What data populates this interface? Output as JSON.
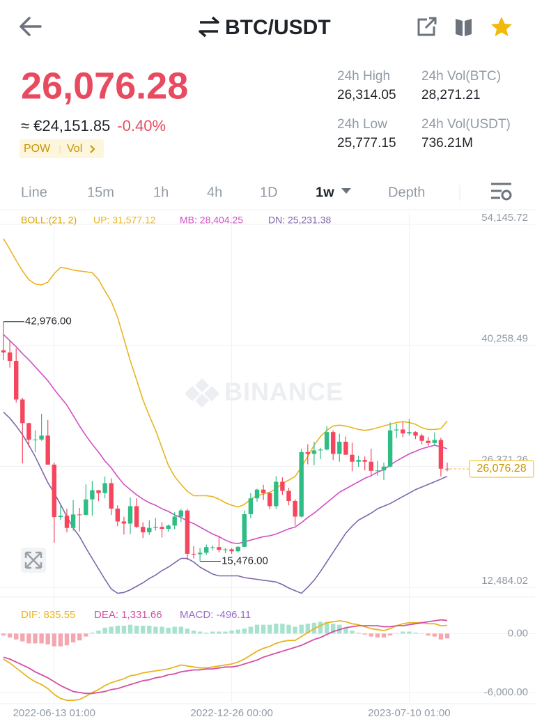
{
  "header": {
    "title": "BTC/USDT"
  },
  "ticker": {
    "price": "26,076.28",
    "fiat": "≈ €24,151.85",
    "change": "-0.40%",
    "tags": [
      "POW",
      "Vol"
    ]
  },
  "stats": [
    {
      "label": "24h High",
      "value": "26,314.05"
    },
    {
      "label": "24h Vol(BTC)",
      "value": "28,271.21"
    },
    {
      "label": "24h Low",
      "value": "25,777.15"
    },
    {
      "label": "24h Vol(USDT)",
      "value": "736.21M"
    }
  ],
  "tabs": [
    "Line",
    "15m",
    "1h",
    "4h",
    "1D",
    "1w",
    "Depth"
  ],
  "chart_data": [
    {
      "type": "candlestick",
      "indicator": "BOLL:(21, 2)",
      "watermark": "BINANCE",
      "grid": true,
      "up_color": "#2ebd85",
      "down_color": "#f6465d",
      "categories": [
        null,
        null,
        null,
        null,
        null,
        null,
        null,
        null,
        "2022-06-13 01:00",
        null,
        null,
        null,
        null,
        null,
        null,
        null,
        null,
        null,
        null,
        null,
        null,
        null,
        null,
        null,
        null,
        null,
        null,
        null,
        null,
        null,
        null,
        null,
        null,
        null,
        null,
        null,
        "2022-12-26 00:00",
        null,
        null,
        null,
        null,
        null,
        null,
        null,
        null,
        null,
        null,
        null,
        null,
        null,
        null,
        null,
        null,
        null,
        null,
        null,
        null,
        null,
        null,
        null,
        null,
        null,
        null,
        null,
        "2023-07-10 01:00",
        null,
        null,
        null,
        null,
        null,
        null
      ],
      "open": [
        39700,
        39450,
        38470,
        34040,
        31330,
        29430,
        29450,
        29900,
        26570,
        20550,
        20700,
        19300,
        20850,
        20800,
        22580,
        23630,
        23300,
        24440,
        21520,
        20040,
        19800,
        21800,
        19420,
        18800,
        19310,
        19420,
        19200,
        19570,
        20600,
        21300,
        16330,
        16280,
        16450,
        17100,
        17100,
        16780,
        16840,
        16620,
        17130,
        20880,
        22700,
        23700,
        23300,
        21800,
        24600,
        23550,
        22400,
        20600,
        28000,
        27800,
        28200,
        28300,
        30300,
        27800,
        29200,
        27700,
        26900,
        27100,
        26900,
        25850,
        25900,
        26340,
        30500,
        30600,
        30150,
        30300,
        29900,
        29300,
        29050,
        29400,
        26100
      ],
      "high": [
        42976,
        40800,
        39900,
        34240,
        31400,
        30500,
        32400,
        31700,
        26800,
        21900,
        21500,
        22500,
        21600,
        24300,
        24700,
        23650,
        25200,
        25000,
        21900,
        20580,
        22800,
        22700,
        19950,
        20200,
        20450,
        19950,
        19700,
        21100,
        21480,
        21470,
        17200,
        17000,
        17400,
        17300,
        18400,
        17000,
        16970,
        17200,
        21300,
        23300,
        23800,
        24250,
        23450,
        25250,
        25100,
        23900,
        22600,
        28400,
        28900,
        29200,
        28500,
        31000,
        30500,
        30100,
        29800,
        29100,
        27600,
        27500,
        28400,
        27000,
        26800,
        31400,
        31300,
        31500,
        31800,
        30400,
        30100,
        29750,
        30250,
        29650,
        26800
      ],
      "low": [
        38550,
        37700,
        33700,
        26700,
        28600,
        28000,
        29300,
        26560,
        17600,
        20200,
        18800,
        19000,
        18900,
        20750,
        20700,
        22400,
        22700,
        20800,
        19500,
        18550,
        18600,
        19300,
        18150,
        18500,
        19000,
        18200,
        18900,
        19150,
        20000,
        15600,
        15800,
        15476,
        16200,
        16730,
        16500,
        16400,
        16330,
        16500,
        17100,
        20400,
        22300,
        22500,
        21450,
        21500,
        23100,
        21900,
        19550,
        20500,
        26600,
        26500,
        27200,
        28200,
        27100,
        26900,
        27700,
        25800,
        26300,
        25900,
        25400,
        25300,
        24800,
        26250,
        29600,
        29700,
        29900,
        29500,
        28900,
        28700,
        28750,
        25200,
        25800
      ],
      "close": [
        39450,
        38470,
        34040,
        31330,
        29430,
        29450,
        29900,
        26570,
        20550,
        20700,
        19300,
        20850,
        20800,
        22580,
        23630,
        23300,
        24440,
        21520,
        20040,
        19800,
        21800,
        19420,
        18800,
        19310,
        19420,
        19200,
        19570,
        20600,
        21300,
        16330,
        16280,
        16450,
        17100,
        17100,
        16780,
        16840,
        16620,
        17130,
        20880,
        22700,
        23700,
        23300,
        21800,
        24600,
        23550,
        22400,
        20600,
        28000,
        27800,
        28200,
        28300,
        30300,
        27800,
        29200,
        27700,
        26900,
        27100,
        26900,
        25850,
        25900,
        26340,
        30500,
        30600,
        30150,
        30300,
        29900,
        29300,
        29050,
        29400,
        26100,
        26076.28
      ],
      "series": [
        {
          "name": "UP: 31,577.12",
          "color": "#e8b520",
          "values": [
            52500,
            51300,
            50000,
            48800,
            47800,
            47300,
            47200,
            47500,
            48500,
            49200,
            49100,
            48900,
            48800,
            48700,
            48600,
            47800,
            46500,
            45300,
            43500,
            41000,
            38500,
            36300,
            34000,
            32200,
            30500,
            28500,
            26500,
            25200,
            24300,
            23500,
            23000,
            23000,
            23000,
            22900,
            22600,
            22200,
            21900,
            21700,
            22000,
            22600,
            23000,
            23200,
            23400,
            23800,
            24400,
            24800,
            25200,
            26300,
            27500,
            28800,
            29800,
            30500,
            31000,
            31100,
            31000,
            30800,
            30600,
            30500,
            30600,
            30800,
            31000,
            31200,
            31400,
            31500,
            31400,
            31200,
            30800,
            30600,
            30600,
            30700,
            31577.12
          ]
        },
        {
          "name": "MB: 28,404.25",
          "color": "#d24fc6",
          "values": [
            41500,
            40800,
            40100,
            39300,
            38600,
            37800,
            37000,
            36200,
            35200,
            34300,
            33400,
            32200,
            31000,
            29900,
            28900,
            28000,
            27000,
            26200,
            25200,
            24300,
            23700,
            23100,
            22600,
            22200,
            21900,
            21500,
            21200,
            20800,
            20500,
            20100,
            19800,
            19400,
            19000,
            18600,
            18300,
            17900,
            17600,
            17500,
            17700,
            17900,
            18100,
            18300,
            18400,
            18600,
            18900,
            19200,
            19400,
            19900,
            20500,
            21000,
            21600,
            22200,
            22800,
            23400,
            23800,
            24200,
            24600,
            25000,
            25300,
            25700,
            26000,
            26500,
            27000,
            27400,
            27800,
            28100,
            28400,
            28600,
            28800,
            28600,
            28404.25
          ]
        },
        {
          "name": "DN: 25,231.38",
          "color": "#7d67aa",
          "values": [
            32600,
            31900,
            31000,
            30000,
            28800,
            27500,
            26000,
            24500,
            23300,
            22000,
            20600,
            19300,
            18300,
            17000,
            15800,
            14600,
            13400,
            12300,
            11800,
            11900,
            12200,
            12600,
            13000,
            13500,
            13900,
            14400,
            14800,
            15300,
            15800,
            15800,
            15400,
            14800,
            14400,
            14000,
            13800,
            13800,
            13800,
            13800,
            13600,
            13500,
            13400,
            13300,
            13200,
            13100,
            12800,
            12400,
            12100,
            11800,
            12500,
            13300,
            14300,
            15400,
            16500,
            17600,
            18700,
            19500,
            20200,
            20600,
            21000,
            21500,
            21800,
            22100,
            22500,
            22900,
            23300,
            23700,
            24000,
            24300,
            24600,
            24900,
            25231.38
          ]
        }
      ],
      "ylim": [
        11521,
        55509
      ],
      "yticks": [
        {
          "value": 12484.02,
          "label": "12,484.02"
        },
        {
          "value": 26371.26,
          "label": "26,371.26"
        },
        {
          "value": 40258.49,
          "label": "40,258.49"
        },
        {
          "value": 54145.72,
          "label": "54,145.72"
        }
      ],
      "max_label": "42,976.00",
      "min_label": "15,476.00",
      "last_price_label": "26,076.28"
    },
    {
      "type": "line",
      "series": [
        {
          "name": "DIF: 835.55",
          "color": "#e8b520",
          "values": [
            -2600,
            -3000,
            -3500,
            -4000,
            -4500,
            -4900,
            -5200,
            -5600,
            -6200,
            -6600,
            -6800,
            -6800,
            -6700,
            -6400,
            -6000,
            -5700,
            -5300,
            -5000,
            -4800,
            -4600,
            -4300,
            -4200,
            -4000,
            -3900,
            -3800,
            -3700,
            -3600,
            -3400,
            -3200,
            -3300,
            -3400,
            -3500,
            -3500,
            -3400,
            -3300,
            -3200,
            -3100,
            -2900,
            -2600,
            -2200,
            -1800,
            -1500,
            -1300,
            -1000,
            -800,
            -700,
            -700,
            -300,
            100,
            500,
            800,
            1100,
            1200,
            1300,
            1200,
            1000,
            900,
            700,
            500,
            400,
            300,
            500,
            800,
            1000,
            1100,
            1100,
            1100,
            1000,
            1000,
            800,
            835.55
          ]
        },
        {
          "name": "DEA: 1,331.66",
          "color": "#d24fa4",
          "values": [
            -2400,
            -2600,
            -2900,
            -3200,
            -3500,
            -3900,
            -4200,
            -4500,
            -4900,
            -5300,
            -5600,
            -5900,
            -6000,
            -6100,
            -6100,
            -6000,
            -5900,
            -5700,
            -5600,
            -5400,
            -5200,
            -5000,
            -4800,
            -4700,
            -4500,
            -4400,
            -4200,
            -4100,
            -3900,
            -3800,
            -3700,
            -3700,
            -3600,
            -3600,
            -3500,
            -3400,
            -3400,
            -3300,
            -3100,
            -2900,
            -2700,
            -2400,
            -2200,
            -2000,
            -1800,
            -1600,
            -1400,
            -1200,
            -900,
            -600,
            -400,
            -100,
            200,
            400,
            600,
            700,
            800,
            800,
            800,
            800,
            700,
            700,
            800,
            800,
            900,
            1000,
            1100,
            1200,
            1300,
            1400,
            1331.66
          ]
        },
        {
          "name": "MACD: -496.11",
          "type": "bar",
          "color": "#9a6cc8",
          "up_color": "#a6e2cd",
          "down_color": "#f4a7b0",
          "values": [
            -200,
            -400,
            -600,
            -800,
            -1000,
            -1000,
            -1000,
            -1100,
            -1300,
            -1300,
            -1200,
            -900,
            -700,
            -300,
            100,
            300,
            600,
            700,
            800,
            800,
            900,
            800,
            800,
            800,
            700,
            700,
            600,
            700,
            700,
            500,
            300,
            200,
            100,
            200,
            200,
            200,
            300,
            400,
            500,
            700,
            900,
            900,
            900,
            1000,
            1000,
            900,
            700,
            900,
            1000,
            1100,
            1200,
            1200,
            1000,
            900,
            600,
            300,
            100,
            -100,
            -300,
            -400,
            -400,
            -200,
            0,
            200,
            200,
            100,
            0,
            -200,
            -300,
            -600,
            -496.11
          ]
        }
      ],
      "ylim": [
        -7000,
        3500
      ],
      "yticks": [
        {
          "value": -6000,
          "label": "-6,000.00"
        },
        {
          "value": 0,
          "label": "0.00"
        }
      ]
    }
  ]
}
